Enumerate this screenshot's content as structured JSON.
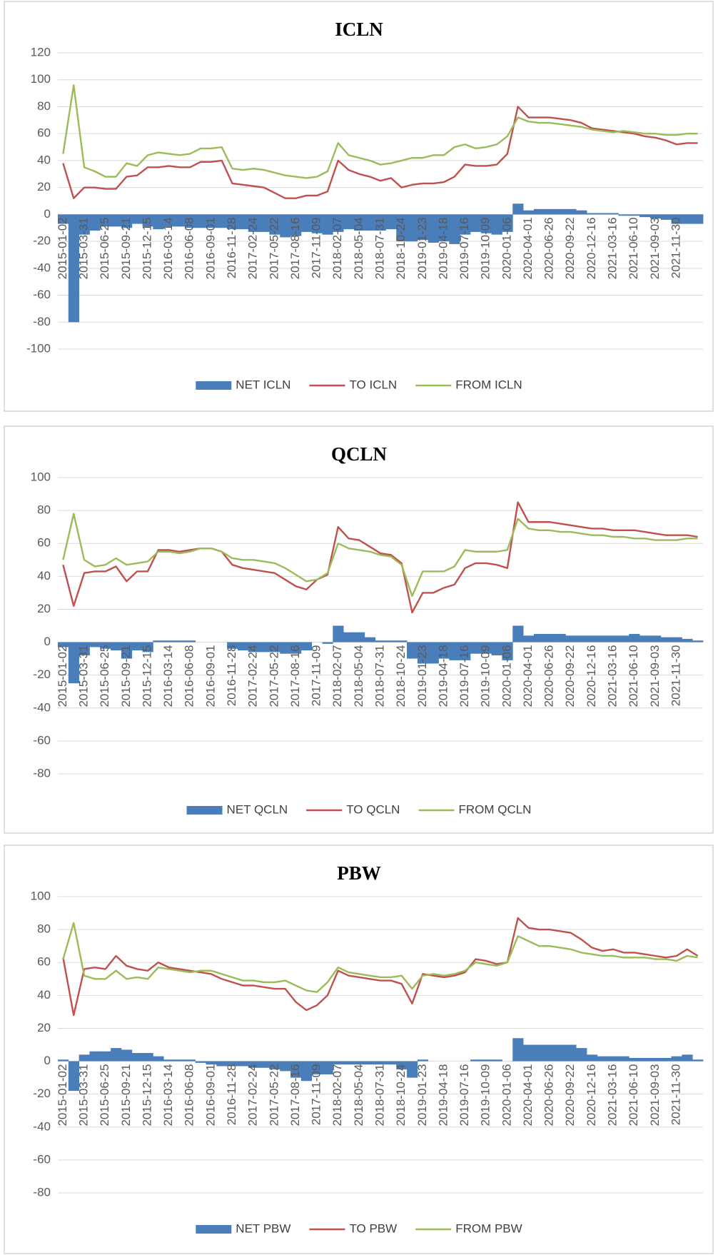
{
  "chart_data": [
    {
      "type": "line",
      "title": "ICLN",
      "categories": [
        "2015-01-02",
        null,
        "2015-03-31",
        null,
        "2015-06-25",
        null,
        "2015-09-21",
        null,
        "2015-12-15",
        null,
        "2016-03-14",
        null,
        "2016-06-08",
        null,
        "2016-09-01",
        null,
        "2016-11-28",
        null,
        "2017-02-24",
        null,
        "2017-05-22",
        null,
        "2017-08-16",
        null,
        "2017-11-09",
        null,
        "2018-02-07",
        null,
        "2018-05-04",
        null,
        "2018-07-31",
        null,
        "2018-10-24",
        null,
        "2019-01-23",
        null,
        "2019-04-18",
        null,
        "2019-07-16",
        null,
        "2019-10-09",
        null,
        "2020-01-06",
        null,
        "2020-04-01",
        null,
        "2020-06-26",
        null,
        "2020-09-22",
        null,
        "2020-12-16",
        null,
        "2021-03-16",
        null,
        "2021-06-10",
        null,
        "2021-09-03",
        null,
        "2021-11-30",
        null,
        null
      ],
      "series": [
        {
          "name": "NET ICLN",
          "type": "bar",
          "color": "#4a7ebb",
          "values": [
            -7,
            -80,
            -15,
            -12,
            -9,
            -9,
            -10,
            -7,
            -9,
            -11,
            -9,
            -9,
            -10,
            -10,
            -10,
            -10,
            -11,
            -11,
            -13,
            -13,
            -15,
            -17,
            -16,
            -13,
            -14,
            -15,
            -13,
            -11,
            -12,
            -12,
            -12,
            -11,
            -20,
            -20,
            -19,
            -21,
            -20,
            -22,
            -15,
            -13,
            -14,
            -15,
            -13,
            8,
            3,
            4,
            4,
            4,
            4,
            3,
            1,
            1,
            1,
            -1,
            -1,
            -2,
            -3,
            -4,
            -7,
            -7,
            -7
          ]
        },
        {
          "name": "TO ICLN",
          "type": "line",
          "color": "#c0504d",
          "values": [
            38,
            12,
            20,
            20,
            19,
            19,
            28,
            29,
            35,
            35,
            36,
            35,
            35,
            39,
            39,
            40,
            23,
            22,
            21,
            20,
            16,
            12,
            12,
            14,
            14,
            17,
            40,
            33,
            30,
            28,
            25,
            27,
            20,
            22,
            23,
            23,
            24,
            28,
            37,
            36,
            36,
            37,
            45,
            80,
            72,
            72,
            72,
            71,
            70,
            68,
            64,
            63,
            62,
            61,
            60,
            58,
            57,
            55,
            52,
            53,
            53
          ]
        },
        {
          "name": "FROM ICLN",
          "type": "line",
          "color": "#9bbb59",
          "values": [
            45,
            96,
            35,
            32,
            28,
            28,
            38,
            36,
            44,
            46,
            45,
            44,
            45,
            49,
            49,
            50,
            34,
            33,
            34,
            33,
            31,
            29,
            28,
            27,
            28,
            32,
            53,
            44,
            42,
            40,
            37,
            38,
            40,
            42,
            42,
            44,
            44,
            50,
            52,
            49,
            50,
            52,
            58,
            72,
            69,
            68,
            68,
            67,
            66,
            65,
            63,
            62,
            61,
            62,
            61,
            60,
            60,
            59,
            59,
            60,
            60
          ]
        }
      ],
      "ylim": [
        -100,
        120
      ],
      "yticks": [
        -100,
        -80,
        -60,
        -40,
        -20,
        0,
        20,
        40,
        60,
        80,
        100,
        120
      ],
      "grid": true,
      "legend": "bottom"
    },
    {
      "type": "line",
      "title": "QCLN",
      "categories": [
        "2015-01-02",
        null,
        "2015-03-31",
        null,
        "2015-06-25",
        null,
        "2015-09-21",
        null,
        "2015-12-15",
        null,
        "2016-03-14",
        null,
        "2016-06-08",
        null,
        "2016-09-01",
        null,
        "2016-11-28",
        null,
        "2017-02-24",
        null,
        "2017-05-22",
        null,
        "2017-08-16",
        null,
        "2017-11-09",
        null,
        "2018-02-07",
        null,
        "2018-05-04",
        null,
        "2018-07-31",
        null,
        "2018-10-24",
        null,
        "2019-01-23",
        null,
        "2019-04-18",
        null,
        "2019-07-16",
        null,
        "2019-10-09",
        null,
        "2020-01-06",
        null,
        "2020-04-01",
        null,
        "2020-06-26",
        null,
        "2020-09-22",
        null,
        "2020-12-16",
        null,
        "2021-03-16",
        null,
        "2021-06-10",
        null,
        "2021-09-03",
        null,
        "2021-11-30",
        null,
        null
      ],
      "series": [
        {
          "name": "NET QCLN",
          "type": "bar",
          "color": "#4a7ebb",
          "values": [
            -3,
            -25,
            -8,
            -3,
            -4,
            -5,
            -10,
            -5,
            -6,
            1,
            1,
            1,
            1,
            0,
            0,
            0,
            -4,
            -5,
            -6,
            -6,
            -6,
            -7,
            -7,
            -5,
            0,
            -1,
            10,
            6,
            6,
            3,
            1,
            1,
            1,
            -10,
            -13,
            -13,
            -10,
            -11,
            -11,
            -7,
            -7,
            -8,
            -11,
            10,
            4,
            5,
            5,
            5,
            4,
            4,
            4,
            4,
            4,
            4,
            5,
            4,
            4,
            3,
            3,
            2,
            1
          ]
        },
        {
          "name": "TO QCLN",
          "type": "line",
          "color": "#c0504d",
          "values": [
            47,
            22,
            42,
            43,
            43,
            46,
            37,
            43,
            43,
            56,
            56,
            55,
            56,
            57,
            57,
            55,
            47,
            45,
            44,
            43,
            42,
            38,
            34,
            32,
            38,
            41,
            70,
            63,
            62,
            58,
            54,
            53,
            48,
            18,
            30,
            30,
            33,
            35,
            45,
            48,
            48,
            47,
            45,
            85,
            73,
            73,
            73,
            72,
            71,
            70,
            69,
            69,
            68,
            68,
            68,
            67,
            66,
            65,
            65,
            65,
            64
          ]
        },
        {
          "name": "FROM QCLN",
          "type": "line",
          "color": "#9bbb59",
          "values": [
            50,
            78,
            50,
            46,
            47,
            51,
            47,
            48,
            49,
            55,
            55,
            54,
            55,
            57,
            57,
            55,
            51,
            50,
            50,
            49,
            48,
            45,
            41,
            37,
            38,
            42,
            60,
            57,
            56,
            55,
            53,
            52,
            47,
            28,
            43,
            43,
            43,
            46,
            56,
            55,
            55,
            55,
            56,
            75,
            69,
            68,
            68,
            67,
            67,
            66,
            65,
            65,
            64,
            64,
            63,
            63,
            62,
            62,
            62,
            63,
            63
          ]
        }
      ],
      "ylim": [
        -80,
        100
      ],
      "yticks": [
        -80,
        -60,
        -40,
        -20,
        0,
        20,
        40,
        60,
        80,
        100
      ],
      "grid": true,
      "legend": "bottom"
    },
    {
      "type": "line",
      "title": "PBW",
      "categories": [
        "2015-01-02",
        null,
        "2015-03-31",
        null,
        "2015-06-25",
        null,
        "2015-09-21",
        null,
        "2015-12-15",
        null,
        "2016-03-14",
        null,
        "2016-06-08",
        null,
        "2016-09-01",
        null,
        "2016-11-28",
        null,
        "2017-02-24",
        null,
        "2017-05-22",
        null,
        "2017-08-16",
        null,
        "2017-11-09",
        null,
        "2018-02-07",
        null,
        "2018-05-04",
        null,
        "2018-07-31",
        null,
        "2018-10-24",
        null,
        "2019-01-23",
        null,
        "2019-04-18",
        null,
        "2019-07-16",
        null,
        "2019-10-09",
        null,
        "2020-01-06",
        null,
        "2020-04-01",
        null,
        "2020-06-26",
        null,
        "2020-09-22",
        null,
        "2020-12-16",
        null,
        "2021-03-16",
        null,
        "2021-06-10",
        null,
        "2021-09-03",
        null,
        "2021-11-30",
        null,
        null
      ],
      "series": [
        {
          "name": "NET PBW",
          "type": "bar",
          "color": "#4a7ebb",
          "values": [
            1,
            -18,
            4,
            6,
            6,
            8,
            7,
            5,
            5,
            3,
            1,
            1,
            1,
            -1,
            -2,
            -3,
            -3,
            -3,
            -4,
            -4,
            -5,
            -6,
            -10,
            -12,
            -8,
            -8,
            -2,
            -2,
            -2,
            -2,
            -2,
            -2,
            -5,
            -10,
            1,
            0,
            0,
            0,
            0,
            1,
            1,
            1,
            0,
            14,
            10,
            10,
            10,
            10,
            10,
            8,
            4,
            3,
            3,
            3,
            2,
            2,
            2,
            2,
            3,
            4,
            1
          ]
        },
        {
          "name": "TO PBW",
          "type": "line",
          "color": "#c0504d",
          "values": [
            63,
            28,
            56,
            57,
            56,
            64,
            58,
            56,
            55,
            60,
            57,
            56,
            55,
            54,
            53,
            50,
            48,
            46,
            46,
            45,
            44,
            44,
            36,
            31,
            34,
            40,
            55,
            52,
            51,
            50,
            49,
            49,
            47,
            35,
            53,
            52,
            51,
            52,
            54,
            62,
            61,
            59,
            60,
            87,
            81,
            80,
            80,
            79,
            78,
            74,
            69,
            67,
            68,
            66,
            66,
            65,
            64,
            63,
            64,
            68,
            64
          ]
        },
        {
          "name": "FROM PBW",
          "type": "line",
          "color": "#9bbb59",
          "values": [
            62,
            84,
            52,
            50,
            50,
            55,
            50,
            51,
            50,
            57,
            56,
            55,
            54,
            55,
            55,
            53,
            51,
            49,
            49,
            48,
            48,
            49,
            46,
            43,
            42,
            48,
            57,
            54,
            53,
            52,
            51,
            51,
            52,
            44,
            52,
            53,
            52,
            53,
            55,
            60,
            59,
            58,
            60,
            76,
            73,
            70,
            70,
            69,
            68,
            66,
            65,
            64,
            64,
            63,
            63,
            63,
            62,
            62,
            61,
            64,
            63
          ]
        }
      ],
      "ylim": [
        -80,
        100
      ],
      "yticks": [
        -80,
        -60,
        -40,
        -20,
        0,
        20,
        40,
        60,
        80,
        100
      ],
      "grid": true,
      "legend": "bottom"
    }
  ]
}
